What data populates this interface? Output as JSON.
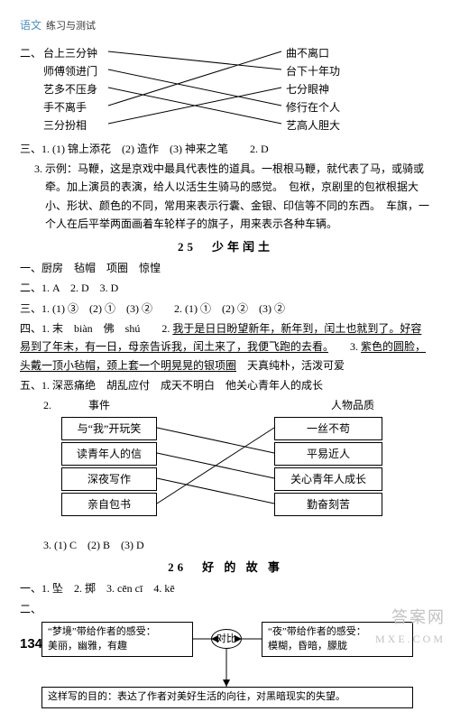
{
  "header": {
    "subject": "语文",
    "title": "练习与测试"
  },
  "sec2": {
    "label": "二、",
    "left": [
      "台上三分钟",
      "师傅领进门",
      "艺多不压身",
      "手不离手",
      "三分扮相"
    ],
    "right": [
      "曲不离口",
      "台下十年功",
      "七分眼神",
      "修行在个人",
      "艺高人胆大"
    ],
    "edges": [
      [
        0,
        1
      ],
      [
        1,
        3
      ],
      [
        2,
        4
      ],
      [
        3,
        0
      ],
      [
        4,
        2
      ]
    ]
  },
  "sec3": {
    "label": "三、",
    "l1": "1. (1) 锦上添花　(2) 造作　(3) 神来之笔　　2. D",
    "p": "3. 示例：马鞭，这是京戏中最具代表性的道具。一根根马鞭，就代表了马，或骑或牵。加上演员的表演，给人以活生生骑马的感觉。　包袱，京剧里的包袱根据大小、形状、颜色的不同，常用来表示行囊、金银、印信等不同的东西。　车旗，一个人在后平举两面画着车轮样子的旗子，用来表示各种车辆。"
  },
  "title25": "25　少年闰土",
  "l25_1": {
    "label": "一、",
    "text": "厨房　毡帽　项圈　惊惶"
  },
  "l25_2": {
    "label": "二、",
    "text": "1. A　2. D　3. D"
  },
  "l25_3": {
    "label": "三、",
    "text": "1. (1) ③　(2) ①　(3) ②　　2. (1) ①　(2) ②　(3) ②"
  },
  "l25_4": {
    "label": "四、",
    "a": "1. 末　biàn　佛　shú　　2. ",
    "u1": "我于是日日盼望新年，新年到，闰土也就到了。好容易到了年末，有一日，母亲告诉我，闰土来了，我便飞跑的去看。",
    "b": "　　3. ",
    "u2": "紫色的圆脸，头戴一顶小毡帽，颈上套一个明晃晃的银项圈",
    "c": "　天真纯朴，活泼可爱"
  },
  "l25_5": {
    "label": "五、",
    "text": "1. 深恶痛绝　胡乱应付　成天不明白　他关心青年人的成长"
  },
  "tbl": {
    "head_l": "事件",
    "head_r": "人物品质",
    "left": [
      "与“我”开玩笑",
      "读青年人的信",
      "深夜写作",
      "亲自包书"
    ],
    "right": [
      "一丝不苟",
      "平易近人",
      "关心青年人成长",
      "勤奋刻苦"
    ],
    "edges": [
      [
        0,
        1
      ],
      [
        1,
        2
      ],
      [
        2,
        3
      ],
      [
        3,
        0
      ]
    ],
    "after": "3. (1) C　(2) B　(3) D"
  },
  "title26": "26　好 的 故 事",
  "l26_1": {
    "label": "一、",
    "text": "1. 坠　2. 掷　3. cēn cī　4. kē"
  },
  "l26_2": {
    "label": "二、"
  },
  "diag": {
    "box_l1": "“梦境”带给作者的感受：",
    "box_l2": "美丽，幽雅，有趣",
    "mid": "对比",
    "box_r1": "“夜”带给作者的感受：",
    "box_r2": "模糊，昏暗，朦胧",
    "bottom": "这样写的目的：表达了作者对美好生活的向往，对黑暗现实的失望。"
  },
  "pagenum": "134",
  "watermark": {
    "corner": "答案网",
    "url": "MXE.COM"
  },
  "style": {
    "bg": "#ffffff",
    "text": "#000000",
    "header": "#4a8fc4",
    "box_border": "#000000",
    "font_main": 12,
    "font_title": 13,
    "tbox_w_l": 96,
    "tbox_w_r": 110
  }
}
